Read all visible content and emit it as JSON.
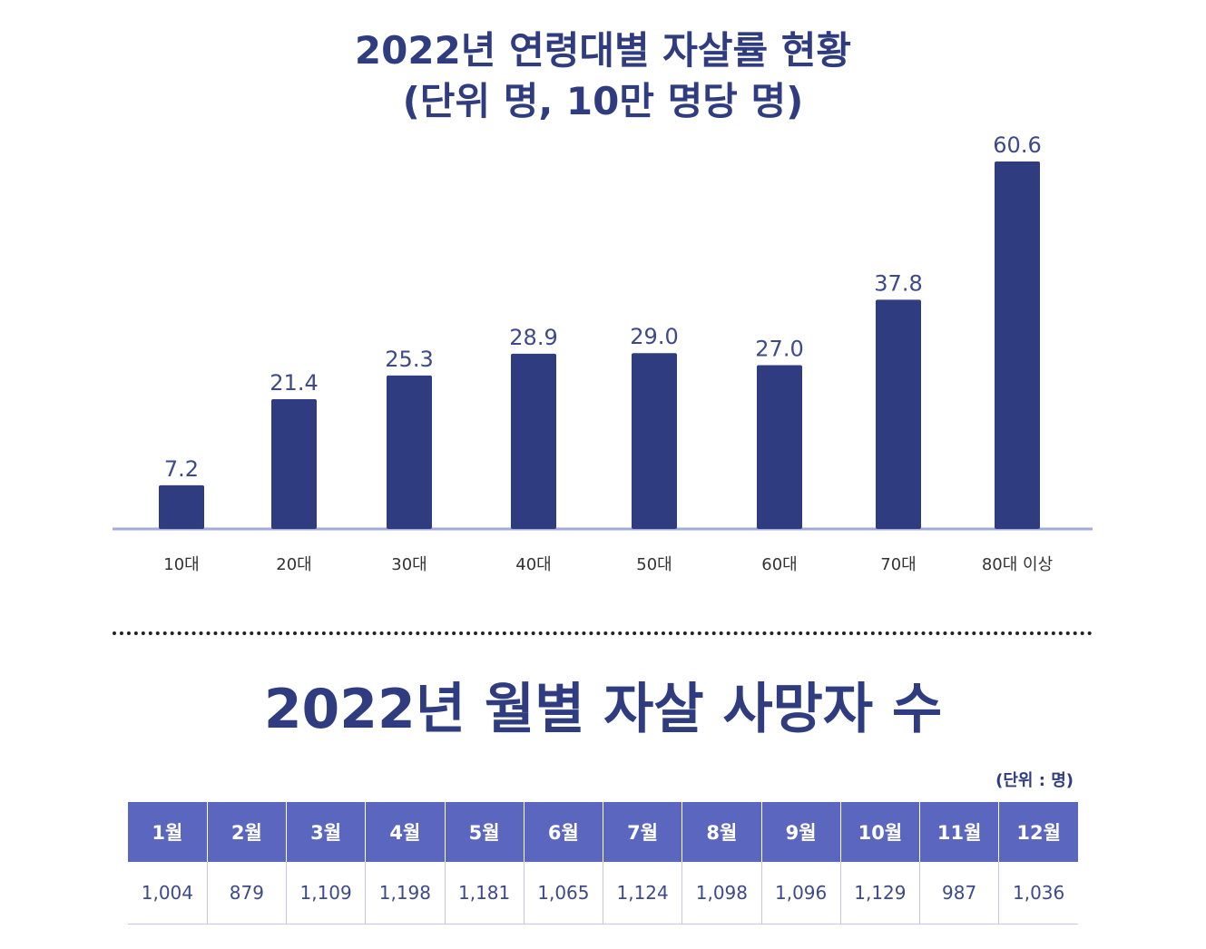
{
  "chart_data": {
    "type": "bar",
    "title": "2022년 연령대별 자살률 현황",
    "subtitle": "(단위 명, 10만 명당 명)",
    "categories": [
      "10대",
      "20대",
      "30대",
      "40대",
      "50대",
      "60대",
      "70대",
      "80대 이상"
    ],
    "values": [
      7.2,
      21.4,
      25.3,
      28.9,
      29.0,
      27.0,
      37.8,
      60.6
    ],
    "value_labels": [
      "7.2",
      "21.4",
      "25.3",
      "28.9",
      "29.0",
      "27.0",
      "37.8",
      "60.6"
    ],
    "ylim": [
      0,
      60.6
    ],
    "grid": false,
    "bar_color": "#2f3c80",
    "baseline_color": "#a3a9dd",
    "label_color": "#3d4a8a"
  },
  "table": {
    "title": "2022년 월별 자살 사망자 수",
    "unit": "(단위 : 명)",
    "headers": [
      "1월",
      "2월",
      "3월",
      "4월",
      "5월",
      "6월",
      "7월",
      "8월",
      "9월",
      "10월",
      "11월",
      "12월"
    ],
    "values": [
      "1,004",
      "879",
      "1,109",
      "1,198",
      "1,181",
      "1,065",
      "1,124",
      "1,098",
      "1,096",
      "1,129",
      "987",
      "1,036"
    ],
    "header_color": "#5b67bf"
  }
}
